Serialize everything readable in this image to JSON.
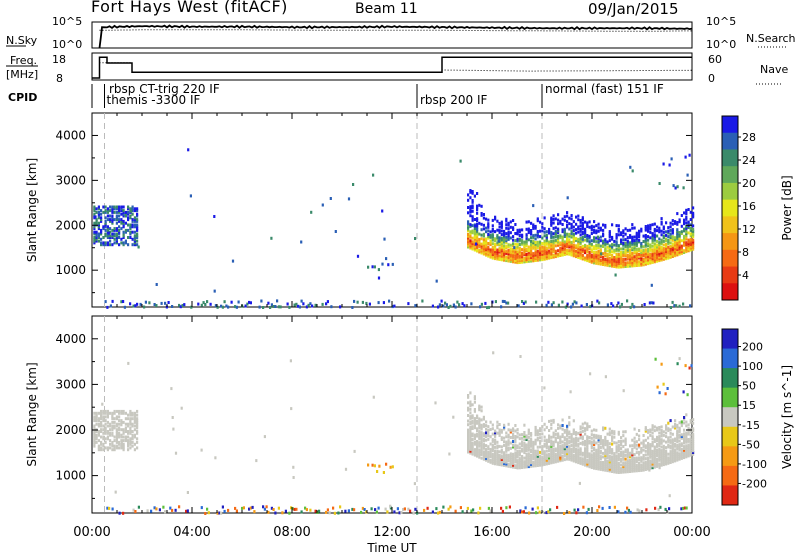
{
  "header": {
    "title": "Fort Hays West (fitACF)",
    "beam": "Beam 11",
    "date": "09/Jan/2015"
  },
  "colors": {
    "background": "#ffffff",
    "axis": "#000000",
    "dashed_marker": "#bbbbbb",
    "ground_scatter": "#c8c8c0"
  },
  "chart_data": [
    {
      "name": "noise-panel",
      "type": "line",
      "left_label": "N.Sky",
      "left_ticks": [
        "10^5",
        "10^0"
      ],
      "right_label": "N.Search",
      "right_ticks": [
        "10^5",
        "10^0"
      ],
      "series": [
        {
          "name": "N.Sky",
          "style": "solid",
          "x_hours": [
            0.3,
            0.4,
            2,
            4,
            6,
            8,
            10,
            12,
            14,
            16,
            18,
            20,
            22,
            24
          ],
          "log_value": [
            0,
            4.0,
            4.2,
            4.1,
            4.1,
            4.0,
            4.0,
            4.1,
            4.0,
            3.9,
            3.8,
            3.8,
            3.8,
            3.7
          ]
        },
        {
          "name": "N.Search",
          "style": "dotted",
          "x_hours": [
            0.3,
            2,
            6,
            10,
            14,
            18,
            22,
            24
          ],
          "log_value": [
            3.4,
            3.5,
            3.5,
            3.4,
            3.4,
            3.3,
            3.2,
            3.3
          ]
        }
      ]
    },
    {
      "name": "freq-panel",
      "type": "line",
      "left_label": "Freq. [MHz]",
      "left_ticks": [
        "18",
        "8"
      ],
      "right_label": "Nave",
      "right_ticks": [
        "60",
        "0"
      ],
      "series": [
        {
          "name": "Freq",
          "style": "solid",
          "x_hours": [
            0,
            0.3,
            0.3,
            0.6,
            0.6,
            1.6,
            1.6,
            14.0,
            14.0,
            24
          ],
          "value": [
            8,
            8,
            17,
            17,
            14.5,
            14.5,
            10.5,
            10.5,
            17,
            17
          ]
        },
        {
          "name": "Nave",
          "style": "dotted",
          "x_hours": [
            0.3,
            1.6,
            1.6,
            14.0,
            14.0,
            17.5,
            24
          ],
          "value": [
            40,
            40,
            15,
            15,
            21,
            18,
            20
          ]
        }
      ]
    },
    {
      "name": "cpid-panel",
      "type": "table",
      "label": "CPID",
      "segments": [
        {
          "start_hour": 0.5,
          "label": "themis -3300 IF"
        },
        {
          "start_hour": 0.5,
          "label": "rbsp CT-trig 220 IF"
        },
        {
          "start_hour": 13.0,
          "label": "rbsp 200 IF"
        },
        {
          "start_hour": 18.0,
          "label": "normal (fast) 151 IF"
        }
      ]
    },
    {
      "name": "power-panel",
      "type": "heatmap",
      "ylabel": "Slant Range [km]",
      "yticks": [
        1000,
        2000,
        3000,
        4000
      ],
      "ylim": [
        180,
        4500
      ],
      "xlim": [
        0,
        24
      ],
      "colorbar_label": "Power [dB]",
      "colorbar_ticks": [
        "28",
        "24",
        "20",
        "16",
        "12",
        "8",
        "4"
      ],
      "colorbar_colors": [
        "#1a1ae6",
        "#2a5fb5",
        "#3a8a6a",
        "#5fa85a",
        "#9ccc40",
        "#e6e61a",
        "#f0c21a",
        "#f59614",
        "#f56a14",
        "#e83a14",
        "#dd1010"
      ],
      "scatter_regions": [
        {
          "t0": 0.0,
          "t1": 1.8,
          "r0": 1600,
          "r1": 2450,
          "level": "low"
        },
        {
          "t0": 15.0,
          "t1": 24.0,
          "r_center": [
            [
              15.0,
              1700
            ],
            [
              16.0,
              1450
            ],
            [
              17.0,
              1350
            ],
            [
              18.0,
              1420
            ],
            [
              19.0,
              1550
            ],
            [
              20.0,
              1350
            ],
            [
              21.0,
              1250
            ],
            [
              22.0,
              1300
            ],
            [
              23.0,
              1450
            ],
            [
              24.0,
              1650
            ]
          ],
          "width_km": 700,
          "level": "high"
        },
        {
          "t0": 0.5,
          "t1": 24.0,
          "r0": 180,
          "r1": 350,
          "level": "low",
          "density": "sparse"
        },
        {
          "t0": 11.0,
          "t1": 12.0,
          "r0": 1100,
          "r1": 1300,
          "level": "low"
        },
        {
          "t0": 22.5,
          "t1": 24.0,
          "r0": 2800,
          "r1": 3600,
          "level": "low"
        }
      ]
    },
    {
      "name": "velocity-panel",
      "type": "heatmap",
      "ylabel": "Slant Range [km]",
      "yticks": [
        1000,
        2000,
        3000,
        4000
      ],
      "ylim": [
        180,
        4500
      ],
      "xlim": [
        0,
        24
      ],
      "xticks": [
        "00:00",
        "04:00",
        "08:00",
        "12:00",
        "16:00",
        "20:00",
        "00:00"
      ],
      "xlabel": "Time UT",
      "colorbar_label": "Velocity [m s^-1]",
      "colorbar_ticks": [
        "200",
        "100",
        "50",
        "15",
        "-15",
        "-50",
        "-100",
        "-200"
      ],
      "colorbar_colors": [
        "#2020c0",
        "#2a6ad6",
        "#2a8a5a",
        "#5cbf3a",
        "#c8c8c0",
        "#e8c818",
        "#f59a14",
        "#f56a14",
        "#e02814"
      ],
      "scatter_regions": [
        {
          "t0": 0.0,
          "t1": 1.8,
          "r0": 1600,
          "r1": 2450,
          "class": "ground"
        },
        {
          "t0": 15.0,
          "t1": 24.0,
          "class": "ground"
        },
        {
          "t0": 0.5,
          "t1": 24.0,
          "r0": 180,
          "r1": 350,
          "class": "mixed",
          "density": "sparse"
        },
        {
          "t0": 11.0,
          "t1": 12.0,
          "r0": 1100,
          "r1": 1300,
          "class": "negative"
        }
      ]
    }
  ]
}
